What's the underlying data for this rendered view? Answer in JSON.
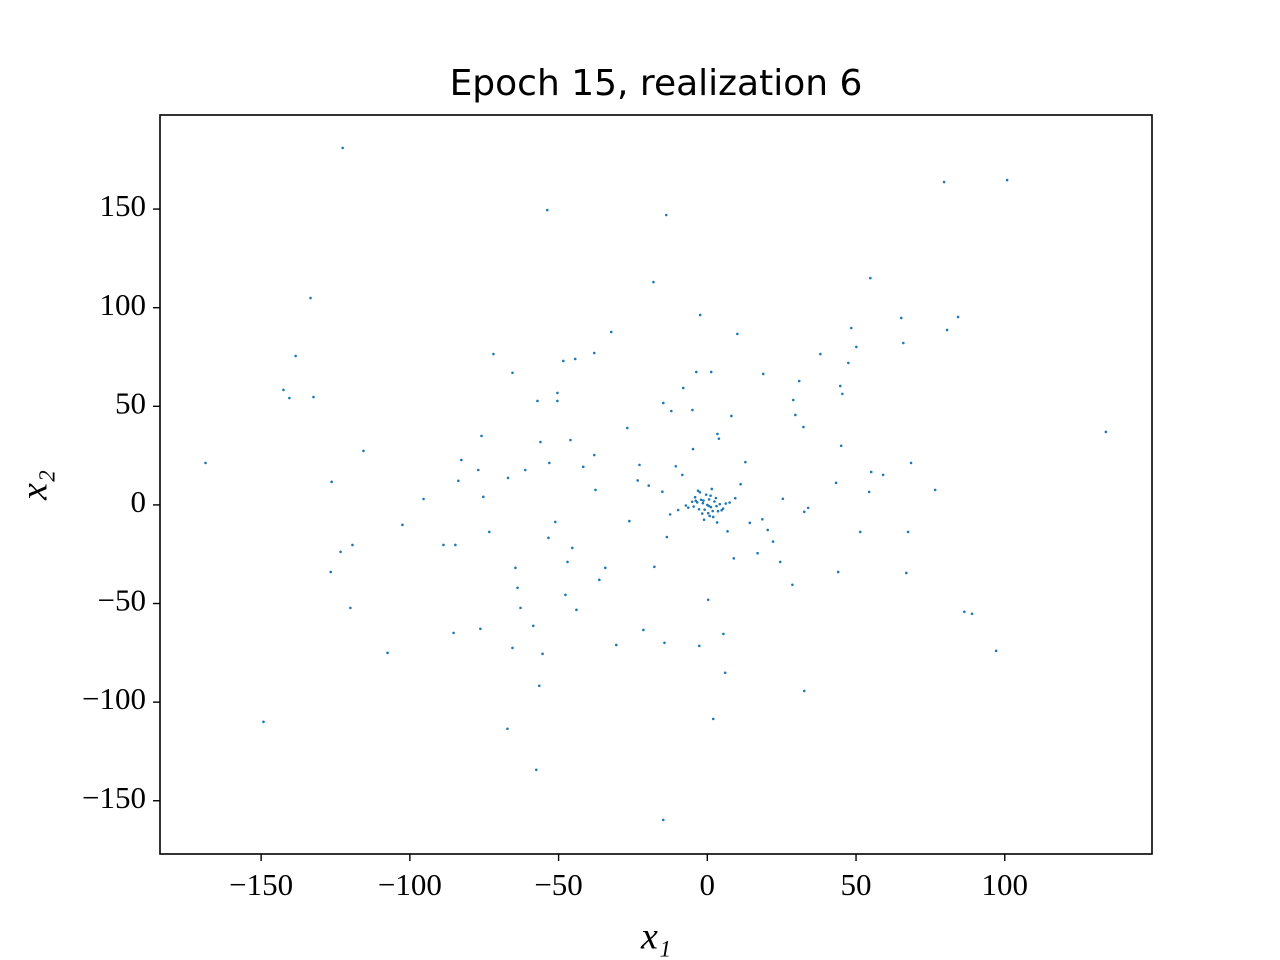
{
  "chart_data": {
    "type": "scatter",
    "title": "Epoch 15, realization 6",
    "xlabel": "x₁",
    "ylabel": "x₂",
    "color": "#1f77b4",
    "xlim": [
      -184,
      149.5
    ],
    "ylim": [
      -177,
      197.7
    ],
    "xticks": [
      {
        "value": -150,
        "label": "−150"
      },
      {
        "value": -100,
        "label": "−100"
      },
      {
        "value": -50,
        "label": "−50"
      },
      0,
      50,
      100
    ],
    "yticks": [
      {
        "value": -150,
        "label": "−150"
      },
      {
        "value": -100,
        "label": "−100"
      },
      {
        "value": -50,
        "label": "−50"
      },
      0,
      50,
      100,
      150
    ],
    "x": [
      -122.6,
      -53.8,
      -13.8,
      79.6,
      100.8,
      -133.4,
      -18.1,
      54.8,
      -2.4,
      65.2,
      84.3,
      48.4,
      80.6,
      10.1,
      -32.3,
      65.9,
      50.1,
      -138.4,
      -71.9,
      -38,
      -44.4,
      -48.4,
      38,
      47.4,
      -65.5,
      1.3,
      -3.7,
      18.8,
      30.9,
      -142.5,
      -140.5,
      -132.4,
      -50.4,
      -50.4,
      -57.1,
      44.7,
      45.4,
      -8.1,
      -14.8,
      28.9,
      29.6,
      8.1,
      -12.1,
      -5,
      -26.9,
      -75.9,
      -56.1,
      -46,
      32.3,
      3.4,
      -115.6,
      45,
      -82.7,
      -38,
      -53.1,
      -41.7,
      -61.2,
      -77,
      -168.7,
      134,
      68.5,
      55.1,
      59.1,
      -22.8,
      -83.7,
      -67,
      -126.3,
      -75.3,
      -95.4,
      -37.6,
      76.6,
      43.3,
      54.4,
      33.9,
      32.6,
      -102.5,
      -51.1,
      -73.3,
      51.4,
      67.5,
      -53.4,
      -119.3,
      -88.7,
      -84.7,
      -45.4,
      -123.3,
      -126.6,
      -64.5,
      -34.3,
      -47,
      -36.3,
      -63.8,
      24.5,
      44,
      66.9,
      28.6,
      -47.7,
      -62.8,
      -120,
      -44,
      0.3,
      86.4,
      89,
      -85.3,
      -76.3,
      -58.5,
      -30.6,
      -21.5,
      -14.4,
      -2.7,
      5.4,
      -65.5,
      -55.4,
      -107.5,
      97.1,
      6,
      -56.5,
      32.6,
      -149.2,
      2,
      -67.2,
      -57.5,
      -14.8,
      0,
      1.2,
      -1.5,
      2.4,
      -2.8,
      0.6,
      3.1,
      -3.4,
      1.8,
      -0.9,
      4.2,
      -4.6,
      2.9,
      -2.1,
      0.3,
      5.3,
      -5.1,
      1.1,
      -1.7,
      3.6,
      -3.9,
      6.2,
      -6.4,
      0.8,
      -0.4,
      2,
      -2.5,
      4.8,
      -4.1,
      7.5,
      -7.2,
      1.5,
      -1.1,
      3.3,
      -3.1,
      9.4,
      -9.8,
      11.2,
      -12.5,
      14.3,
      -15.1,
      6.8,
      -8.4,
      18.5,
      -19.7,
      22.1,
      -23.4,
      12.8,
      -13.6,
      25.4,
      -26.2,
      16.9,
      -4.8,
      8.9,
      -10.6,
      20.3,
      -17.8,
      3.9,
      -1.3,
      0.5
    ],
    "values": [
      181,
      149.5,
      147,
      163.7,
      164.7,
      104.9,
      113,
      115,
      96.3,
      94.8,
      95.3,
      89.7,
      88.7,
      86.7,
      87.7,
      82.1,
      80.1,
      75.5,
      76.5,
      77,
      74,
      73,
      76.5,
      72,
      67,
      67.4,
      67.4,
      66.4,
      62.8,
      58.3,
      54.2,
      54.7,
      56.8,
      52.7,
      52.7,
      60.3,
      56.3,
      59.3,
      51.7,
      53.2,
      45.6,
      45.1,
      47.6,
      48.1,
      39,
      35,
      31.9,
      32.9,
      39.5,
      36,
      27.4,
      30,
      22.8,
      25.3,
      21.3,
      19.3,
      17.7,
      17.7,
      21.3,
      37,
      21.3,
      16.7,
      15.2,
      20.3,
      12.2,
      13.7,
      11.7,
      4.1,
      3,
      7.6,
      7.6,
      11.2,
      6.6,
      -1.5,
      -3.5,
      -10.1,
      -8.6,
      -13.7,
      -13.7,
      -13.7,
      -16.7,
      -20.3,
      -20.3,
      -20.3,
      -21.8,
      -23.8,
      -34,
      -31.9,
      -31.9,
      -28.9,
      -38,
      -42,
      -28.9,
      -34,
      -34.5,
      -40.5,
      -45.6,
      -52.2,
      -52.2,
      -53.2,
      -48.1,
      -54.2,
      -55.2,
      -64.9,
      -62.8,
      -61.3,
      -71,
      -63.4,
      -69.9,
      -71.5,
      -65.4,
      -72.5,
      -75.5,
      -75,
      -74,
      -85.1,
      -91.7,
      -94.3,
      -110,
      -108.5,
      -113.5,
      -134.3,
      -159.7,
      0,
      -1.1,
      0.9,
      1.7,
      -2.2,
      2.8,
      -0.6,
      1.3,
      -3.1,
      -2.4,
      0.4,
      -0.8,
      3.5,
      2.6,
      -4.2,
      -1.9,
      1.6,
      4.7,
      -4.4,
      -3.2,
      2.1,
      0.7,
      -1.4,
      -5.6,
      5.2,
      -6.1,
      6.4,
      -2.7,
      3.9,
      1.2,
      -0.3,
      8.1,
      -7.5,
      -8.9,
      7.2,
      3.4,
      -2.6,
      10.5,
      -4.8,
      -9.1,
      6.7,
      -13.4,
      15.2,
      -7.3,
      9.8,
      -18.6,
      12.4,
      21.7,
      -16.3,
      3.1,
      -8.2,
      -24.5,
      28.3,
      -27.1,
      19.6,
      -12.7,
      -31.4,
      33.6,
      2.2,
      -0.5
    ]
  }
}
